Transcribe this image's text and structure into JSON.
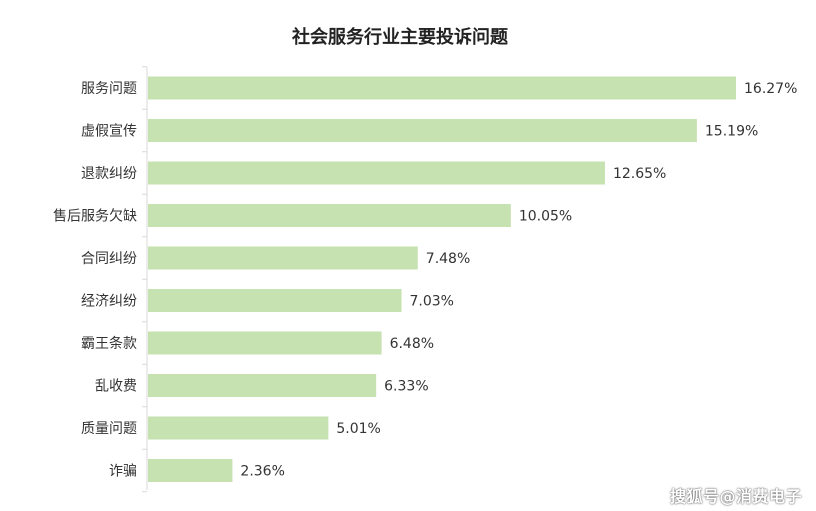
{
  "colors": {
    "bar_fill": "#c6e2b1",
    "axis": "#d9d9d9",
    "text": "#333333",
    "title": "#222222"
  },
  "watermark": "搜狐号@消费电子",
  "chart_data": {
    "type": "bar",
    "orientation": "horizontal",
    "title": "社会服务行业主要投诉问题",
    "xlabel": "",
    "ylabel": "",
    "grid": false,
    "legend": "none",
    "xlim": [
      0,
      17.5
    ],
    "value_format": "percent",
    "categories": [
      "服务问题",
      "虚假宣传",
      "退款纠纷",
      "售后服务欠缺",
      "合同纠纷",
      "经济纠纷",
      "霸王条款",
      "乱收费",
      "质量问题",
      "诈骗"
    ],
    "values": [
      16.27,
      15.19,
      12.65,
      10.05,
      7.48,
      7.03,
      6.48,
      6.33,
      5.01,
      2.36
    ],
    "labels": [
      "16.27%",
      "15.19%",
      "12.65%",
      "10.05%",
      "7.48%",
      "7.03%",
      "6.48%",
      "6.33%",
      "5.01%",
      "2.36%"
    ]
  }
}
